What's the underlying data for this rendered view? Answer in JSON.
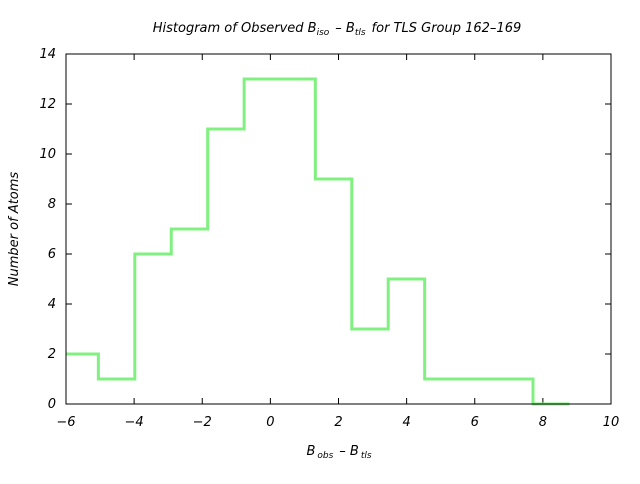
{
  "chart_data": {
    "type": "histogram",
    "title": {
      "prefix": "Histogram of Observed B",
      "sub1": "iso",
      "middle": "– B",
      "sub2": "tls",
      "suffix": "for TLS Group 162–169"
    },
    "xlabel": {
      "main1": "B",
      "sub1": "obs",
      "middle": "– B",
      "sub2": "tls"
    },
    "ylabel": "Number of Atoms",
    "xlim": [
      -6,
      10
    ],
    "ylim": [
      0,
      14
    ],
    "x_ticks": [
      -6,
      -4,
      -2,
      0,
      2,
      4,
      6,
      8,
      10
    ],
    "x_tick_labels": [
      "−6",
      "−4",
      "−2",
      "0",
      "2",
      "4",
      "6",
      "8",
      "10"
    ],
    "y_ticks": [
      0,
      2,
      4,
      6,
      8,
      10,
      12,
      14
    ],
    "y_tick_labels": [
      "0",
      "2",
      "4",
      "6",
      "8",
      "10",
      "12",
      "14"
    ],
    "grid": false,
    "series_color": "#80f080",
    "bins": [
      {
        "x0": -6.0,
        "x1": -5.05,
        "count": 2
      },
      {
        "x0": -5.05,
        "x1": -3.98,
        "count": 1
      },
      {
        "x0": -3.98,
        "x1": -2.91,
        "count": 6
      },
      {
        "x0": -2.91,
        "x1": -1.84,
        "count": 7
      },
      {
        "x0": -1.84,
        "x1": -0.77,
        "count": 11
      },
      {
        "x0": -0.77,
        "x1": 1.32,
        "count": 13
      },
      {
        "x0": 1.32,
        "x1": 2.39,
        "count": 9
      },
      {
        "x0": 2.39,
        "x1": 3.46,
        "count": 3
      },
      {
        "x0": 3.46,
        "x1": 4.53,
        "count": 5
      },
      {
        "x0": 4.53,
        "x1": 7.71,
        "count": 1
      },
      {
        "x0": 7.71,
        "x1": 8.78,
        "count": 0
      }
    ]
  }
}
